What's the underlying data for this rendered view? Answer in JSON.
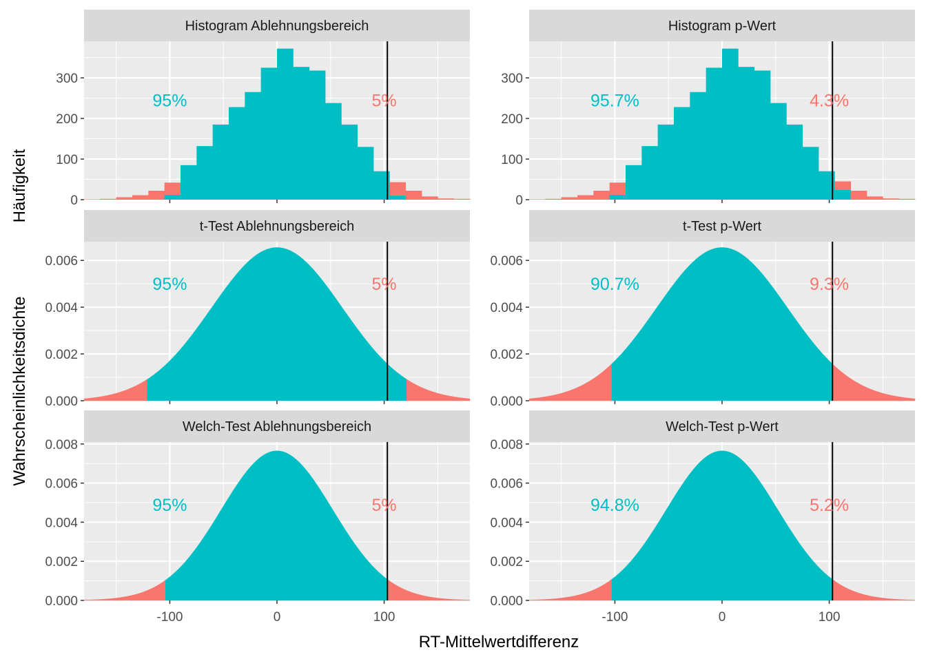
{
  "colors": {
    "accept": "#00BFC4",
    "reject": "#F8766D",
    "panel_bg": "#EBEBEB",
    "strip_bg": "#D9D9D9",
    "grid": "#FFFFFF",
    "vline": "#000000"
  },
  "labels": {
    "x_axis_title": "RT-Mittelwertdifferenz",
    "y_title_histogram": "Häufigkeit",
    "y_title_density": "Wahrscheinlichkeitsdichte"
  },
  "chart_data": [
    {
      "type": "bar",
      "title": "Histogram Ablehnungsbereich",
      "xlabel": "RT-Mittelwertdifferenz",
      "ylabel": "Häufigkeit",
      "xlim": [
        -180,
        180
      ],
      "ylim": [
        0,
        390
      ],
      "y_ticks": [
        0,
        100,
        200,
        300
      ],
      "y_tick_labels": [
        "0",
        "100",
        "200",
        "300"
      ],
      "x_ticks": [
        -100,
        0,
        100
      ],
      "x_tick_labels": [
        "-100",
        "0",
        "100"
      ],
      "bin_width": 15,
      "bin_starts": [
        -180,
        -165,
        -150,
        -135,
        -120,
        -105,
        -90,
        -75,
        -60,
        -45,
        -30,
        -15,
        0,
        15,
        30,
        45,
        60,
        75,
        90,
        105,
        120,
        135,
        150,
        165
      ],
      "accept_counts": [
        0,
        0,
        0,
        0,
        0,
        12,
        85,
        132,
        185,
        228,
        265,
        325,
        372,
        327,
        318,
        238,
        185,
        130,
        70,
        10,
        0,
        0,
        0,
        0
      ],
      "reject_counts": [
        1,
        2,
        6,
        11,
        22,
        30,
        0,
        0,
        0,
        0,
        0,
        0,
        0,
        0,
        0,
        0,
        0,
        0,
        0,
        33,
        22,
        8,
        3,
        2
      ],
      "vline_x": 103,
      "annotations": [
        {
          "text": "95%",
          "x": -100,
          "y": 245,
          "class": "accept"
        },
        {
          "text": "5%",
          "x": 100,
          "y": 245,
          "class": "reject"
        }
      ]
    },
    {
      "type": "bar",
      "title": "Histogram p-Wert",
      "xlabel": "RT-Mittelwertdifferenz",
      "ylabel": "Häufigkeit",
      "xlim": [
        -180,
        180
      ],
      "ylim": [
        0,
        390
      ],
      "y_ticks": [
        0,
        100,
        200,
        300
      ],
      "y_tick_labels": [
        "0",
        "100",
        "200",
        "300"
      ],
      "x_ticks": [
        -100,
        0,
        100
      ],
      "x_tick_labels": [
        "-100",
        "0",
        "100"
      ],
      "bin_width": 15,
      "bin_starts": [
        -180,
        -165,
        -150,
        -135,
        -120,
        -105,
        -90,
        -75,
        -60,
        -45,
        -30,
        -15,
        0,
        15,
        30,
        45,
        60,
        75,
        90,
        105,
        120,
        135,
        150,
        165
      ],
      "accept_counts": [
        0,
        0,
        0,
        0,
        0,
        12,
        85,
        132,
        185,
        228,
        265,
        325,
        372,
        327,
        318,
        238,
        185,
        130,
        70,
        25,
        0,
        0,
        0,
        0
      ],
      "reject_counts": [
        1,
        2,
        6,
        11,
        22,
        30,
        0,
        0,
        0,
        0,
        0,
        0,
        0,
        0,
        0,
        0,
        0,
        0,
        0,
        20,
        22,
        8,
        3,
        2
      ],
      "vline_x": 103,
      "annotations": [
        {
          "text": "95.7%",
          "x": -100,
          "y": 245,
          "class": "accept"
        },
        {
          "text": "4.3%",
          "x": 100,
          "y": 245,
          "class": "reject"
        }
      ]
    },
    {
      "type": "area",
      "title": "t-Test Ablehnungsbereich",
      "xlabel": "RT-Mittelwertdifferenz",
      "ylabel": "Wahrscheinlichkeitsdichte",
      "xlim": [
        -180,
        180
      ],
      "ylim": [
        0,
        0.0068
      ],
      "y_ticks": [
        0,
        0.002,
        0.004,
        0.006
      ],
      "y_tick_labels": [
        "0.000",
        "0.002",
        "0.004",
        "0.006"
      ],
      "x_ticks": [
        -100,
        0,
        100
      ],
      "x_tick_labels": [
        "-100",
        "0",
        "100"
      ],
      "distribution": {
        "mean": 0,
        "sd": 61,
        "peak": 0.00655
      },
      "accept_region": [
        -121,
        121
      ],
      "vline_x": 103,
      "annotations": [
        {
          "text": "95%",
          "x": -100,
          "y": 0.005,
          "class": "accept"
        },
        {
          "text": "5%",
          "x": 100,
          "y": 0.005,
          "class": "reject"
        }
      ]
    },
    {
      "type": "area",
      "title": "t-Test p-Wert",
      "xlabel": "RT-Mittelwertdifferenz",
      "ylabel": "Wahrscheinlichkeitsdichte",
      "xlim": [
        -180,
        180
      ],
      "ylim": [
        0,
        0.0068
      ],
      "y_ticks": [
        0,
        0.002,
        0.004,
        0.006
      ],
      "y_tick_labels": [
        "0.000",
        "0.002",
        "0.004",
        "0.006"
      ],
      "x_ticks": [
        -100,
        0,
        100
      ],
      "x_tick_labels": [
        "-100",
        "0",
        "100"
      ],
      "distribution": {
        "mean": 0,
        "sd": 61,
        "peak": 0.00655
      },
      "accept_region": [
        -103,
        103
      ],
      "vline_x": 103,
      "annotations": [
        {
          "text": "90.7%",
          "x": -100,
          "y": 0.005,
          "class": "accept"
        },
        {
          "text": "9.3%",
          "x": 100,
          "y": 0.005,
          "class": "reject"
        }
      ]
    },
    {
      "type": "area",
      "title": "Welch-Test Ablehnungsbereich",
      "xlabel": "RT-Mittelwertdifferenz",
      "ylabel": "Wahrscheinlichkeitsdichte",
      "xlim": [
        -180,
        180
      ],
      "ylim": [
        0,
        0.0081
      ],
      "y_ticks": [
        0,
        0.002,
        0.004,
        0.006,
        0.008
      ],
      "y_tick_labels": [
        "0.000",
        "0.002",
        "0.004",
        "0.006",
        "0.008"
      ],
      "x_ticks": [
        -100,
        0,
        100
      ],
      "x_tick_labels": [
        "-100",
        "0",
        "100"
      ],
      "distribution": {
        "mean": 0,
        "sd": 52,
        "peak": 0.00765
      },
      "accept_region": [
        -104,
        104
      ],
      "vline_x": 103,
      "annotations": [
        {
          "text": "95%",
          "x": -100,
          "y": 0.0049,
          "class": "accept"
        },
        {
          "text": "5%",
          "x": 100,
          "y": 0.0049,
          "class": "reject"
        }
      ]
    },
    {
      "type": "area",
      "title": "Welch-Test p-Wert",
      "xlabel": "RT-Mittelwertdifferenz",
      "ylabel": "Wahrscheinlichkeitsdichte",
      "xlim": [
        -180,
        180
      ],
      "ylim": [
        0,
        0.0081
      ],
      "y_ticks": [
        0,
        0.002,
        0.004,
        0.006,
        0.008
      ],
      "y_tick_labels": [
        "0.000",
        "0.002",
        "0.004",
        "0.006",
        "0.008"
      ],
      "x_ticks": [
        -100,
        0,
        100
      ],
      "x_tick_labels": [
        "-100",
        "0",
        "100"
      ],
      "distribution": {
        "mean": 0,
        "sd": 52,
        "peak": 0.00765
      },
      "accept_region": [
        -103,
        103
      ],
      "vline_x": 103,
      "annotations": [
        {
          "text": "94.8%",
          "x": -100,
          "y": 0.0049,
          "class": "accept"
        },
        {
          "text": "5.2%",
          "x": 100,
          "y": 0.0049,
          "class": "reject"
        }
      ]
    }
  ]
}
